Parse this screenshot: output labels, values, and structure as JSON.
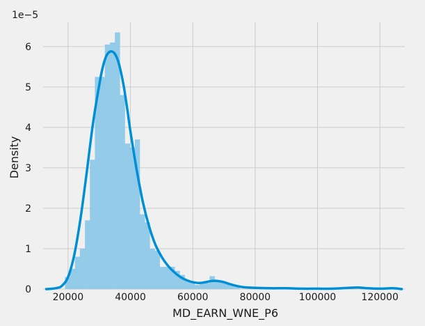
{
  "chart_data": {
    "type": "histogram",
    "xlabel": "MD_EARN_WNE_P6",
    "ylabel": "Density",
    "y_offset_text": "1e−5",
    "xlim": [
      12000,
      128000
    ],
    "ylim": [
      0,
      6.6
    ],
    "grid": true,
    "x_ticks": [
      20000,
      40000,
      60000,
      80000,
      100000,
      120000
    ],
    "x_tick_labels": [
      "20000",
      "40000",
      "60000",
      "80000",
      "100000",
      "120000"
    ],
    "y_ticks": [
      0,
      1,
      2,
      3,
      4,
      5,
      6
    ],
    "y_tick_labels": [
      "0",
      "1",
      "2",
      "3",
      "4",
      "5",
      "6"
    ],
    "bar_color": "#8ec8e8",
    "kde_color": "#008fd5",
    "bins": [
      {
        "x0": 19000,
        "x1": 20600,
        "density": 0.3
      },
      {
        "x0": 20600,
        "x1": 22200,
        "density": 0.5
      },
      {
        "x0": 22200,
        "x1": 23800,
        "density": 0.8
      },
      {
        "x0": 23800,
        "x1": 25400,
        "density": 1.0
      },
      {
        "x0": 25400,
        "x1": 27000,
        "density": 1.7
      },
      {
        "x0": 27000,
        "x1": 28600,
        "density": 3.2
      },
      {
        "x0": 28600,
        "x1": 30200,
        "density": 5.25
      },
      {
        "x0": 30200,
        "x1": 31800,
        "density": 5.25
      },
      {
        "x0": 31800,
        "x1": 33400,
        "density": 6.05
      },
      {
        "x0": 33400,
        "x1": 35000,
        "density": 6.1
      },
      {
        "x0": 35000,
        "x1": 36600,
        "density": 6.35
      },
      {
        "x0": 36600,
        "x1": 38200,
        "density": 4.8
      },
      {
        "x0": 38200,
        "x1": 39800,
        "density": 3.6
      },
      {
        "x0": 39800,
        "x1": 41400,
        "density": 3.5
      },
      {
        "x0": 41400,
        "x1": 43000,
        "density": 3.7
      },
      {
        "x0": 43000,
        "x1": 44600,
        "density": 1.85
      },
      {
        "x0": 44600,
        "x1": 46200,
        "density": 1.65
      },
      {
        "x0": 46200,
        "x1": 47800,
        "density": 1.0
      },
      {
        "x0": 47800,
        "x1": 49400,
        "density": 0.95
      },
      {
        "x0": 49400,
        "x1": 51000,
        "density": 0.55
      },
      {
        "x0": 51000,
        "x1": 52600,
        "density": 0.55
      },
      {
        "x0": 52600,
        "x1": 54200,
        "density": 0.55
      },
      {
        "x0": 54200,
        "x1": 55800,
        "density": 0.45
      },
      {
        "x0": 55800,
        "x1": 57400,
        "density": 0.35
      },
      {
        "x0": 57400,
        "x1": 59000,
        "density": 0.2
      },
      {
        "x0": 59000,
        "x1": 60600,
        "density": 0.15
      },
      {
        "x0": 60600,
        "x1": 62200,
        "density": 0.1
      },
      {
        "x0": 62200,
        "x1": 63800,
        "density": 0.15
      },
      {
        "x0": 63800,
        "x1": 65400,
        "density": 0.15
      },
      {
        "x0": 65400,
        "x1": 67000,
        "density": 0.32
      },
      {
        "x0": 67000,
        "x1": 68600,
        "density": 0.18
      },
      {
        "x0": 68600,
        "x1": 70200,
        "density": 0.18
      },
      {
        "x0": 70200,
        "x1": 71800,
        "density": 0.15
      },
      {
        "x0": 71800,
        "x1": 73400,
        "density": 0.12
      },
      {
        "x0": 73400,
        "x1": 75000,
        "density": 0.05
      }
    ],
    "kde": {
      "x": [
        13000,
        16000,
        18000,
        20000,
        22000,
        24000,
        26000,
        28000,
        30000,
        31000,
        32000,
        33000,
        34000,
        35000,
        36000,
        37000,
        38000,
        39000,
        40000,
        42000,
        44000,
        46000,
        48000,
        50000,
        52000,
        54000,
        56000,
        58000,
        60000,
        62000,
        64000,
        66000,
        68000,
        70000,
        72000,
        74000,
        76000,
        80000,
        85000,
        90000,
        95000,
        100000,
        105000,
        110000,
        113000,
        116000,
        120000,
        124000,
        127000
      ],
      "y": [
        0.0,
        0.02,
        0.08,
        0.3,
        0.85,
        1.75,
        2.9,
        4.1,
        5.05,
        5.45,
        5.72,
        5.85,
        5.88,
        5.82,
        5.65,
        5.35,
        4.95,
        4.45,
        3.9,
        2.95,
        2.15,
        1.55,
        1.1,
        0.8,
        0.58,
        0.42,
        0.3,
        0.22,
        0.17,
        0.15,
        0.17,
        0.2,
        0.2,
        0.17,
        0.12,
        0.08,
        0.05,
        0.03,
        0.02,
        0.02,
        0.01,
        0.01,
        0.01,
        0.03,
        0.04,
        0.02,
        0.01,
        0.02,
        0.0
      ]
    }
  }
}
